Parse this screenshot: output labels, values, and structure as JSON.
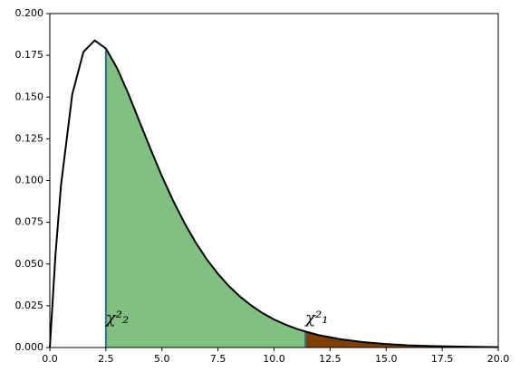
{
  "chart_data": {
    "type": "line",
    "x": [
      0,
      0.25,
      0.5,
      1,
      1.5,
      2,
      2.5,
      3,
      3.5,
      4,
      4.5,
      5,
      5.5,
      6,
      6.5,
      7,
      7.5,
      8,
      8.5,
      9,
      9.5,
      10,
      10.5,
      11,
      11.5,
      12,
      13,
      14,
      15,
      16,
      17,
      18,
      19,
      20
    ],
    "series": [
      {
        "color": "#000000",
        "values": [
          0,
          0.0552,
          0.0974,
          0.1516,
          0.1771,
          0.1839,
          0.1791,
          0.1673,
          0.1521,
          0.1353,
          0.1186,
          0.1026,
          0.0879,
          0.0747,
          0.063,
          0.0528,
          0.0441,
          0.0366,
          0.0303,
          0.025,
          0.0205,
          0.0168,
          0.0138,
          0.0112,
          0.0092,
          0.0074,
          0.0049,
          0.0032,
          0.0021,
          0.0013,
          0.0009,
          0.0006,
          0.0004,
          0.0002
        ]
      }
    ],
    "regions": [
      {
        "label": "χ²₂",
        "xmin": 2.5,
        "xmax": 11.4,
        "color": "#80c080"
      },
      {
        "label": "χ²₁",
        "xmin": 11.4,
        "xmax": 20,
        "color": "#7f3f00"
      }
    ],
    "boundary_color": "#2f6f8f",
    "xlim": [
      0,
      20
    ],
    "xticks": [
      {
        "value": 0,
        "label": "0.0"
      },
      2.5,
      {
        "value": 5,
        "label": "5.0"
      },
      7.5,
      {
        "value": 10,
        "label": "10.0"
      },
      12.5,
      {
        "value": 15,
        "label": "15.0"
      },
      17.5,
      {
        "value": 20,
        "label": "20.0"
      }
    ],
    "ylim": [
      0,
      0.2
    ],
    "yticks": [
      {
        "value": 0,
        "label": "0.000"
      },
      {
        "value": 0.025,
        "label": "0.025"
      },
      {
        "value": 0.05,
        "label": "0.050"
      },
      {
        "value": 0.075,
        "label": "0.075"
      },
      {
        "value": 0.1,
        "label": "0.100"
      },
      {
        "value": 0.125,
        "label": "0.125"
      },
      {
        "value": 0.15,
        "label": "0.150"
      },
      {
        "value": 0.175,
        "label": "0.175"
      },
      {
        "value": 0.2,
        "label": "0.200"
      }
    ]
  }
}
